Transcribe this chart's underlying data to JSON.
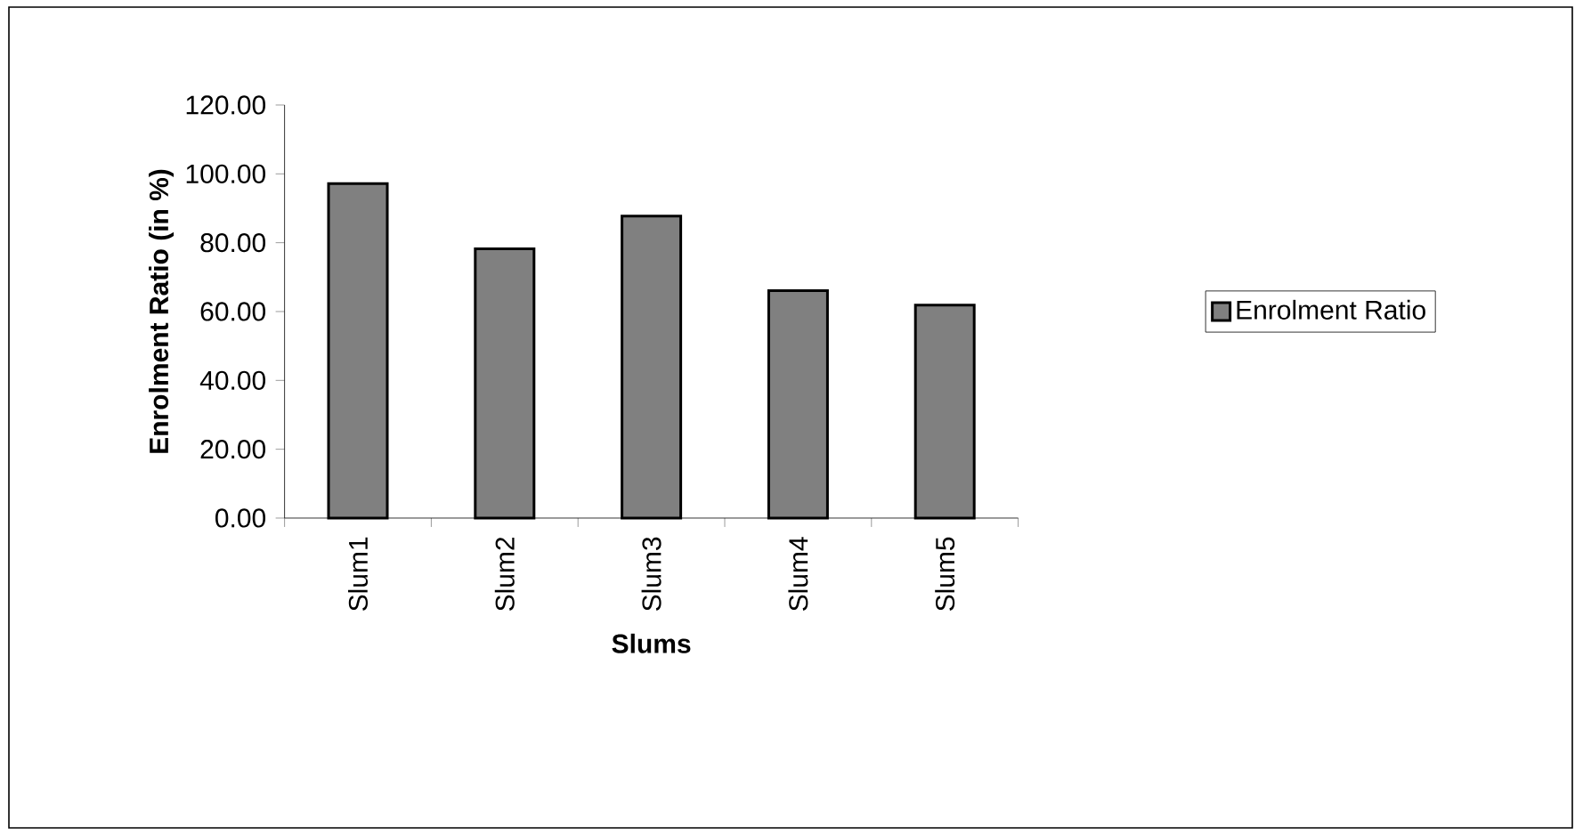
{
  "chart_data": {
    "type": "bar",
    "xlabel": "Slums",
    "ylabel": "Enrolment Ratio (in %)",
    "categories": [
      "Slum1",
      "Slum2",
      "Slum3",
      "Slum4",
      "Slum5"
    ],
    "series": [
      {
        "name": "Enrolment Ratio",
        "color": "#808080",
        "values": [
          97.2,
          78.2,
          87.7,
          66.1,
          61.9
        ]
      }
    ],
    "ylim": [
      0,
      120
    ],
    "yticks": [
      {
        "value": 0,
        "label": "0.00"
      },
      {
        "value": 20,
        "label": "20.00"
      },
      {
        "value": 40,
        "label": "40.00"
      },
      {
        "value": 60,
        "label": "60.00"
      },
      {
        "value": 80,
        "label": "80.00"
      },
      {
        "value": 100,
        "label": "100.00"
      },
      {
        "value": 120,
        "label": "120.00"
      }
    ],
    "grid": false,
    "legend": "right"
  }
}
